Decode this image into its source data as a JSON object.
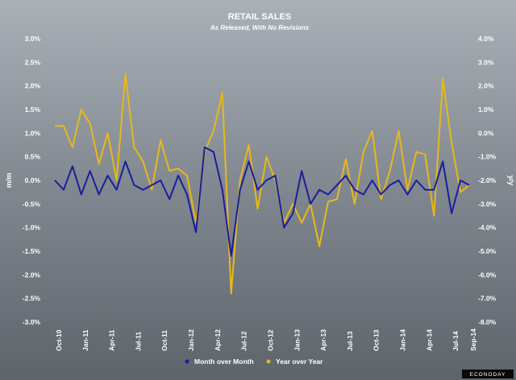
{
  "chart_data": {
    "type": "line",
    "title": "RETAIL SALES",
    "subtitle": "As Released, With No Revisions",
    "ylabel_left": "m/m",
    "ylabel_right": "y/y",
    "left_axis": {
      "ylim": [
        -3.0,
        3.0
      ],
      "ticks": [
        "3.0%",
        "2.5%",
        "2.0%",
        "1.5%",
        "1.0%",
        "0.5%",
        "0.0%",
        "-0.5%",
        "-1.0%",
        "-1.5%",
        "-2.0%",
        "-2.5%",
        "-3.0%"
      ]
    },
    "right_axis": {
      "ylim": [
        -8.0,
        4.0
      ],
      "ticks": [
        "4.0%",
        "3.0%",
        "2.0%",
        "1.0%",
        "0.0%",
        "-1.0%",
        "-2.0%",
        "-3.0%",
        "-4.0%",
        "-5.0%",
        "-6.0%",
        "-7.0%",
        "-8.0%"
      ]
    },
    "x_tick_labels": [
      "Oct-10",
      "Jan-11",
      "Apr-11",
      "Jul-11",
      "Oct-11",
      "Jan-12",
      "Apr-12",
      "Jul-12",
      "Oct-12",
      "Jan-13",
      "Apr-13",
      "Jul-13",
      "Oct-13",
      "Jan-14",
      "Apr-14",
      "Jul-14",
      "Sep-14"
    ],
    "grid": false,
    "legend_position": "bottom-center",
    "series": [
      {
        "name": "Month over Month",
        "axis": "left",
        "color": "#1a1f9a",
        "values": [
          0.0,
          -0.2,
          0.3,
          -0.3,
          0.2,
          -0.3,
          0.1,
          -0.2,
          0.4,
          -0.1,
          -0.2,
          -0.1,
          0.0,
          -0.4,
          0.1,
          -0.3,
          -1.1,
          0.7,
          0.6,
          -0.2,
          -1.6,
          -0.2,
          0.4,
          -0.2,
          0.0,
          0.1,
          -1.0,
          -0.7,
          0.2,
          -0.5,
          -0.2,
          -0.3,
          -0.1,
          0.1,
          -0.2,
          -0.3,
          0.0,
          -0.3,
          -0.1,
          0.0,
          -0.3,
          0.0,
          -0.2,
          -0.2,
          0.4,
          -0.7,
          0.0,
          -0.1
        ]
      },
      {
        "name": "Year over Year",
        "axis": "right",
        "color": "#e8b81a",
        "values": [
          0.3,
          0.3,
          -0.6,
          1.0,
          0.4,
          -1.3,
          0.0,
          -2.0,
          2.5,
          -0.6,
          -1.2,
          -2.4,
          -0.3,
          -1.6,
          -1.5,
          -1.8,
          -3.8,
          -0.8,
          0.1,
          1.7,
          -6.8,
          -2.0,
          -0.5,
          -3.2,
          -1.0,
          -2.0,
          -3.8,
          -3.0,
          -3.8,
          -3.0,
          -4.8,
          -2.9,
          -2.8,
          -1.1,
          -3.0,
          -0.8,
          0.1,
          -2.8,
          -1.6,
          0.1,
          -2.4,
          -0.8,
          -0.9,
          -3.5,
          2.3,
          -0.4,
          -2.5,
          -2.2
        ]
      }
    ]
  },
  "watermark": "ECONODAY"
}
